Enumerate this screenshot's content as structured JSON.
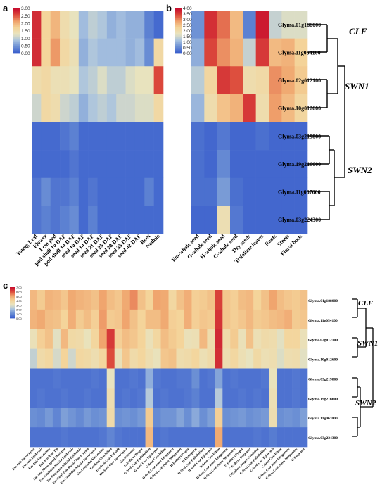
{
  "palette": [
    "#3a5fcd",
    "#6b8fd4",
    "#a9c3df",
    "#e8e3bf",
    "#f4d49a",
    "#f0a56e",
    "#dc4b3c",
    "#c8102e"
  ],
  "chart_data": [
    {
      "id": "a",
      "type": "heatmap",
      "panel_label": "a",
      "legend_ticks": [
        "3.00",
        "2.50",
        "2.00",
        "1.50",
        "1.00",
        "0.50",
        "0.00"
      ],
      "vmin": 0,
      "vmax": 3,
      "rows": [
        "Glyma.01g188000",
        "Glyma.11g054100",
        "Glyma.02g012100",
        "Glyma.10g012600",
        "Glyma.03g219800",
        "Glyma.19g216600",
        "Glyma.11g067000",
        "Glyma.03g224300"
      ],
      "columns": [
        "Young Leaf",
        "Flower",
        "1 cm pod",
        "pod shell 10 DAF",
        "pod shell 14 DAF",
        "seed 10 DAF",
        "seed 14 DAF",
        "seed 21 DAF",
        "seed 25 DAF",
        "seed 28 DAF",
        "seed 35 DAF",
        "seed 42 DAF",
        "Root",
        "Nodule"
      ],
      "values": [
        [
          2.8,
          1.7,
          2.0,
          1.5,
          1.3,
          0.8,
          1.0,
          0.9,
          0.7,
          0.8,
          0.7,
          0.7,
          0.3,
          0.1
        ],
        [
          2.8,
          1.7,
          2.2,
          1.6,
          1.4,
          0.7,
          0.9,
          0.8,
          0.8,
          0.8,
          0.7,
          0.8,
          0.4,
          1.6
        ],
        [
          1.5,
          1.6,
          1.4,
          1.4,
          1.3,
          0.9,
          1.0,
          1.2,
          1.0,
          1.0,
          1.2,
          1.3,
          1.3,
          2.6
        ],
        [
          1.1,
          1.6,
          1.5,
          1.1,
          1.0,
          0.7,
          0.9,
          1.0,
          0.9,
          1.1,
          1.1,
          1.2,
          1.2,
          1.6
        ],
        [
          0.1,
          0.1,
          0.1,
          0.2,
          0.3,
          0.1,
          0.1,
          0.1,
          0.1,
          0.1,
          0.1,
          0.1,
          0.1,
          0.1
        ],
        [
          0.1,
          0.1,
          0.1,
          0.1,
          0.2,
          0.1,
          0.1,
          0.1,
          0.1,
          0.1,
          0.1,
          0.1,
          0.1,
          0.1
        ],
        [
          0.2,
          0.4,
          0.2,
          0.2,
          0.3,
          0.1,
          0.2,
          0.1,
          0.1,
          0.1,
          0.1,
          0.1,
          0.3,
          0.1
        ],
        [
          0.2,
          0.3,
          0.2,
          0.3,
          0.4,
          0.1,
          0.3,
          0.1,
          0.1,
          0.1,
          0.1,
          0.1,
          0.1,
          0.1
        ]
      ]
    },
    {
      "id": "b",
      "type": "heatmap",
      "panel_label": "b",
      "legend_ticks": [
        "4.00",
        "3.50",
        "3.00",
        "2.50",
        "2.00",
        "1.50",
        "1.00",
        "0.50",
        "0.00"
      ],
      "vmin": 0,
      "vmax": 4,
      "rows": [
        "Glyma.01g188000",
        "Glyma.11g054100",
        "Glyma.02g012100",
        "Glyma.10g012600",
        "Glyma.03g219800",
        "Glyma.19g216600",
        "Glyma.11g067000",
        "Glyma.03g224300"
      ],
      "columns": [
        "Em-whole seed",
        "G-whole seed",
        "H-whole seed",
        "C-whole seed",
        "Dry seeds",
        "Trifoliate leaves",
        "Roots",
        "Stems",
        "Floral buds"
      ],
      "values": [
        [
          0.6,
          3.7,
          3.2,
          2.6,
          0.4,
          3.9,
          1.4,
          1.6,
          1.6
        ],
        [
          0.9,
          3.5,
          3.0,
          2.7,
          1.4,
          3.6,
          2.6,
          2.7,
          2.3
        ],
        [
          1.3,
          2.2,
          3.6,
          3.4,
          2.0,
          2.1,
          3.0,
          2.8,
          2.4
        ],
        [
          1.0,
          2.0,
          2.5,
          2.7,
          3.6,
          2.0,
          2.9,
          2.6,
          2.2
        ],
        [
          0.2,
          0.1,
          0.3,
          0.1,
          0.1,
          0.2,
          0.1,
          0.1,
          0.1
        ],
        [
          0.2,
          0.1,
          0.5,
          0.1,
          0.1,
          0.1,
          0.1,
          0.1,
          0.1
        ],
        [
          0.2,
          0.2,
          0.7,
          0.2,
          0.1,
          0.1,
          0.1,
          0.1,
          0.1
        ],
        [
          0.1,
          0.1,
          1.9,
          0.3,
          0.1,
          0.1,
          0.1,
          0.1,
          0.1
        ]
      ]
    },
    {
      "id": "c",
      "type": "heatmap",
      "panel_label": "c",
      "legend_ticks": [
        "7.00",
        "6.00",
        "5.00",
        "4.00",
        "3.00",
        "2.00",
        "1.00",
        "0.00"
      ],
      "vmin": 0,
      "vmax": 7,
      "rows": [
        "Glyma.01g188000",
        "Glyma.11g054100",
        "Glyma.02g012100",
        "Glyma.10g012600",
        "Glyma.03g219800",
        "Glyma.19g216600",
        "Glyma.11g067000",
        "Glyma.03g224300"
      ],
      "columns": [
        "Em-Axis Parenchyma",
        "Em-Axis Epidermis",
        "Em-Axis Vasculature",
        "Em-Axis Root Tip",
        "Em-Axis Shoot Apical Meristem",
        "Em-Cotyledon Abaxial Epidermis",
        "Em-Cotyledon Adaxial Epidermis",
        "Em-Cotyledon Abaxial Parenchyma",
        "Em-Cotyledon Adaxial Parenchyma",
        "Em-Cotyledon Vasculature",
        "Em-Seed Coat Hilum",
        "Em-Seed Coat Palisade",
        "Em-Seed Coat Parenchyma",
        "Em-Suspensor",
        "G-Embryo Proper",
        "G-Seed Coat Endothelium",
        "G-Seed Coat Epidermis",
        "G-Seed Coat Hilum",
        "G-Seed Coat Inner Integument",
        "G-Seed Coat Outer Integument",
        "H-Embryo Proper",
        "H-Endosperm",
        "H-Seed Coat Endothelium",
        "H-Seed Coat Epidermis",
        "H-Seed Coat Hilum",
        "H-Seed Coat Inner Integument",
        "H-Seed Coat Outer Integument",
        "C-Embryo Proper",
        "C-Embryo Suspensor",
        "C-Embryo Proper Cotyledon",
        "C-Seed Coat Endothelium",
        "C-Seed Coat Epidermis",
        "C-Seed Coat Hilum",
        "C-Seed Coat Inner Integument",
        "C-Seed Coat Outer Integument",
        "C-Suspensor"
      ],
      "values": [
        [
          4.6,
          4.2,
          4.7,
          4.6,
          4.3,
          4.9,
          4.7,
          4.6,
          4.4,
          5.0,
          4.5,
          4.3,
          4.9,
          5.3,
          4.4,
          4.0,
          5.0,
          4.9,
          3.8,
          4.4,
          4.8,
          4.1,
          4.2,
          4.4,
          6.2,
          4.3,
          4.1,
          4.5,
          4.6,
          4.0,
          4.4,
          5.0,
          4.5,
          4.3,
          4.2,
          4.4
        ],
        [
          4.7,
          4.9,
          4.5,
          4.4,
          4.0,
          4.8,
          4.2,
          4.5,
          4.1,
          5.1,
          4.2,
          4.3,
          5.0,
          4.4,
          4.0,
          4.5,
          4.5,
          4.9,
          4.1,
          4.0,
          4.8,
          4.1,
          4.3,
          4.2,
          6.4,
          4.3,
          4.1,
          4.3,
          4.6,
          4.2,
          4.3,
          4.5,
          4.6,
          4.8,
          4.2,
          4.3
        ],
        [
          3.2,
          4.1,
          4.4,
          2.9,
          4.6,
          3.7,
          3.6,
          3.1,
          3.9,
          5.0,
          6.3,
          4.1,
          4.5,
          4.3,
          4.0,
          3.2,
          3.8,
          4.5,
          4.2,
          4.0,
          3.2,
          3.3,
          4.6,
          3.5,
          6.6,
          3.6,
          4.2,
          3.2,
          4.4,
          3.3,
          3.6,
          3.5,
          2.9,
          3.9,
          3.9,
          3.2
        ],
        [
          2.4,
          3.6,
          3.8,
          2.7,
          4.0,
          2.6,
          3.8,
          3.7,
          3.4,
          3.9,
          6.0,
          3.2,
          4.3,
          3.6,
          3.9,
          3.4,
          3.1,
          4.3,
          4.4,
          3.5,
          3.6,
          3.9,
          3.3,
          3.6,
          6.5,
          3.4,
          3.8,
          3.3,
          3.0,
          3.7,
          3.3,
          3.4,
          2.8,
          3.4,
          3.5,
          2.9
        ],
        [
          0.4,
          0.4,
          0.4,
          0.5,
          0.4,
          0.4,
          0.4,
          0.4,
          0.5,
          0.4,
          3.0,
          0.4,
          0.4,
          0.5,
          0.4,
          1.6,
          0.5,
          0.4,
          0.4,
          0.5,
          0.5,
          1.0,
          0.4,
          0.5,
          1.4,
          0.4,
          0.5,
          0.4,
          0.4,
          0.4,
          0.5,
          3.1,
          0.4,
          0.4,
          0.5,
          0.4
        ],
        [
          0.4,
          0.5,
          0.4,
          0.4,
          0.5,
          0.4,
          0.4,
          0.5,
          0.4,
          0.4,
          3.4,
          0.4,
          0.5,
          0.4,
          0.5,
          2.2,
          0.4,
          0.5,
          0.4,
          0.4,
          0.5,
          0.7,
          0.4,
          0.4,
          2.2,
          0.4,
          0.4,
          0.5,
          0.4,
          0.5,
          0.4,
          3.3,
          0.4,
          0.4,
          0.5,
          0.4
        ],
        [
          1.0,
          0.9,
          1.2,
          0.8,
          1.3,
          1.1,
          0.9,
          1.2,
          1.0,
          1.1,
          3.6,
          1.0,
          1.1,
          1.0,
          1.2,
          4.2,
          0.9,
          1.1,
          1.1,
          1.4,
          1.0,
          1.5,
          1.0,
          1.3,
          4.1,
          1.0,
          1.1,
          1.2,
          1.0,
          1.1,
          1.2,
          3.4,
          1.0,
          1.1,
          1.0,
          1.3
        ],
        [
          0.4,
          0.4,
          0.4,
          0.4,
          0.5,
          0.4,
          0.4,
          0.4,
          0.4,
          0.5,
          0.8,
          0.5,
          0.4,
          0.4,
          0.4,
          4.6,
          0.4,
          0.5,
          0.4,
          0.4,
          0.4,
          0.4,
          0.4,
          0.4,
          4.9,
          0.4,
          0.4,
          0.4,
          0.4,
          0.5,
          0.4,
          0.6,
          0.4,
          0.4,
          0.4,
          0.4
        ]
      ]
    }
  ],
  "clades": {
    "ab": [
      "CLF",
      "SWN1",
      "SWN2"
    ],
    "c": [
      "CLF",
      "SWN1",
      "SWN2"
    ]
  }
}
